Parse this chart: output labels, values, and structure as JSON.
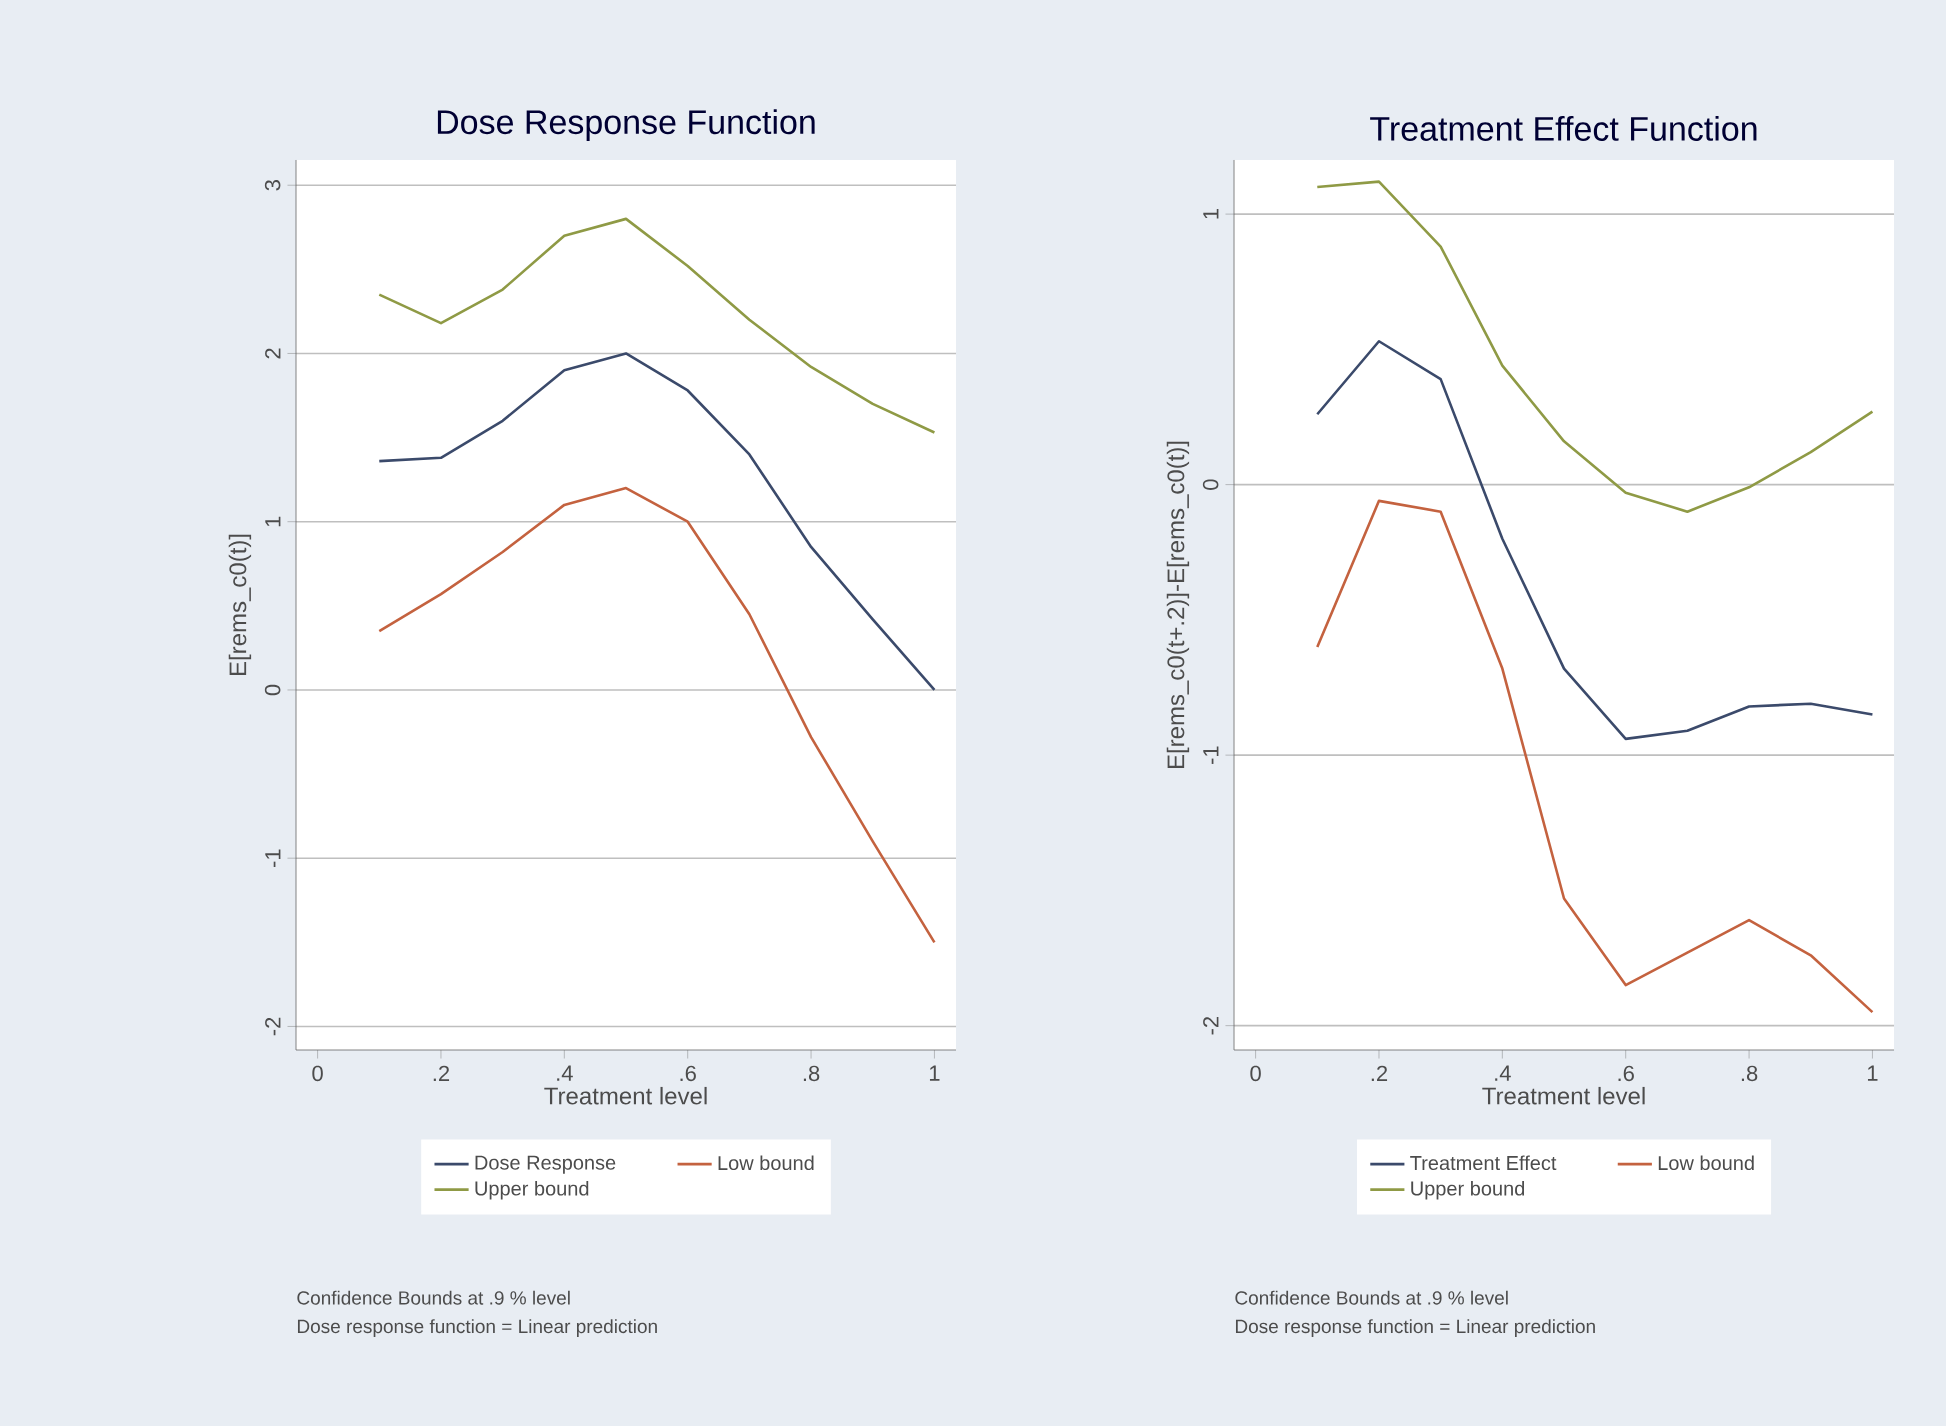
{
  "chart_data": [
    {
      "type": "line",
      "title": "Dose Response Function",
      "xlabel": "Treatment level",
      "ylabel": "E[rems_c0(t)]",
      "x": [
        0.1,
        0.2,
        0.3,
        0.4,
        0.5,
        0.6,
        0.7,
        0.8,
        0.9,
        1
      ],
      "series": [
        {
          "name": "Dose Response",
          "color": "#3b4a6b",
          "values": [
            1.36,
            1.38,
            1.6,
            1.9,
            2.0,
            1.78,
            1.4,
            0.85,
            0.42,
            0.0
          ]
        },
        {
          "name": "Low bound",
          "color": "#c4623f",
          "values": [
            0.35,
            0.57,
            0.82,
            1.1,
            1.2,
            1.0,
            0.45,
            -0.28,
            -0.9,
            -1.5
          ]
        },
        {
          "name": "Upper bound",
          "color": "#8f9a45",
          "values": [
            2.35,
            2.18,
            2.38,
            2.7,
            2.8,
            2.52,
            2.2,
            1.92,
            1.7,
            1.53
          ]
        }
      ],
      "xlim": [
        -0.035,
        1.035
      ],
      "xticks": [
        0,
        {
          "value": 0.2,
          "label": ".2"
        },
        {
          "value": 0.4,
          "label": ".4"
        },
        {
          "value": 0.6,
          "label": ".6"
        },
        {
          "value": 0.8,
          "label": ".8"
        },
        1
      ],
      "ylim": [
        -2.14,
        3.15
      ],
      "yticks": [
        -2,
        -1,
        0,
        1,
        2,
        3
      ],
      "grid": "y",
      "legend": "bottom",
      "annotations": [
        "Confidence Bounds at .9 % level",
        "Dose response function = Linear prediction"
      ]
    },
    {
      "type": "line",
      "title": "Treatment Effect Function",
      "xlabel": "Treatment level",
      "ylabel": "E[rems_c0(t+.2)]-E[rems_c0(t)]",
      "x": [
        0.1,
        0.2,
        0.3,
        0.4,
        0.5,
        0.6,
        0.7,
        0.8,
        0.9,
        1
      ],
      "series": [
        {
          "name": "Treatment Effect",
          "color": "#3b4a6b",
          "values": [
            0.26,
            0.53,
            0.39,
            -0.2,
            -0.68,
            -0.94,
            -0.91,
            -0.82,
            -0.81,
            -0.85
          ]
        },
        {
          "name": "Low bound",
          "color": "#c4623f",
          "values": [
            -0.6,
            -0.06,
            -0.1,
            -0.68,
            -1.53,
            -1.85,
            -1.73,
            -1.61,
            -1.74,
            -1.95
          ]
        },
        {
          "name": "Upper bound",
          "color": "#8f9a45",
          "values": [
            1.1,
            1.12,
            0.88,
            0.44,
            0.16,
            -0.03,
            -0.1,
            -0.01,
            0.12,
            0.27
          ]
        }
      ],
      "xlim": [
        -0.035,
        1.035
      ],
      "xticks": [
        0,
        {
          "value": 0.2,
          "label": ".2"
        },
        {
          "value": 0.4,
          "label": ".4"
        },
        {
          "value": 0.6,
          "label": ".6"
        },
        {
          "value": 0.8,
          "label": ".8"
        },
        1
      ],
      "ylim": [
        -2.09,
        1.2
      ],
      "yticks": [
        -2,
        -1,
        0,
        1
      ],
      "grid": "y",
      "legend": "bottom",
      "annotations": [
        "Confidence Bounds at .9 % level",
        "Dose response function = Linear prediction"
      ]
    }
  ]
}
